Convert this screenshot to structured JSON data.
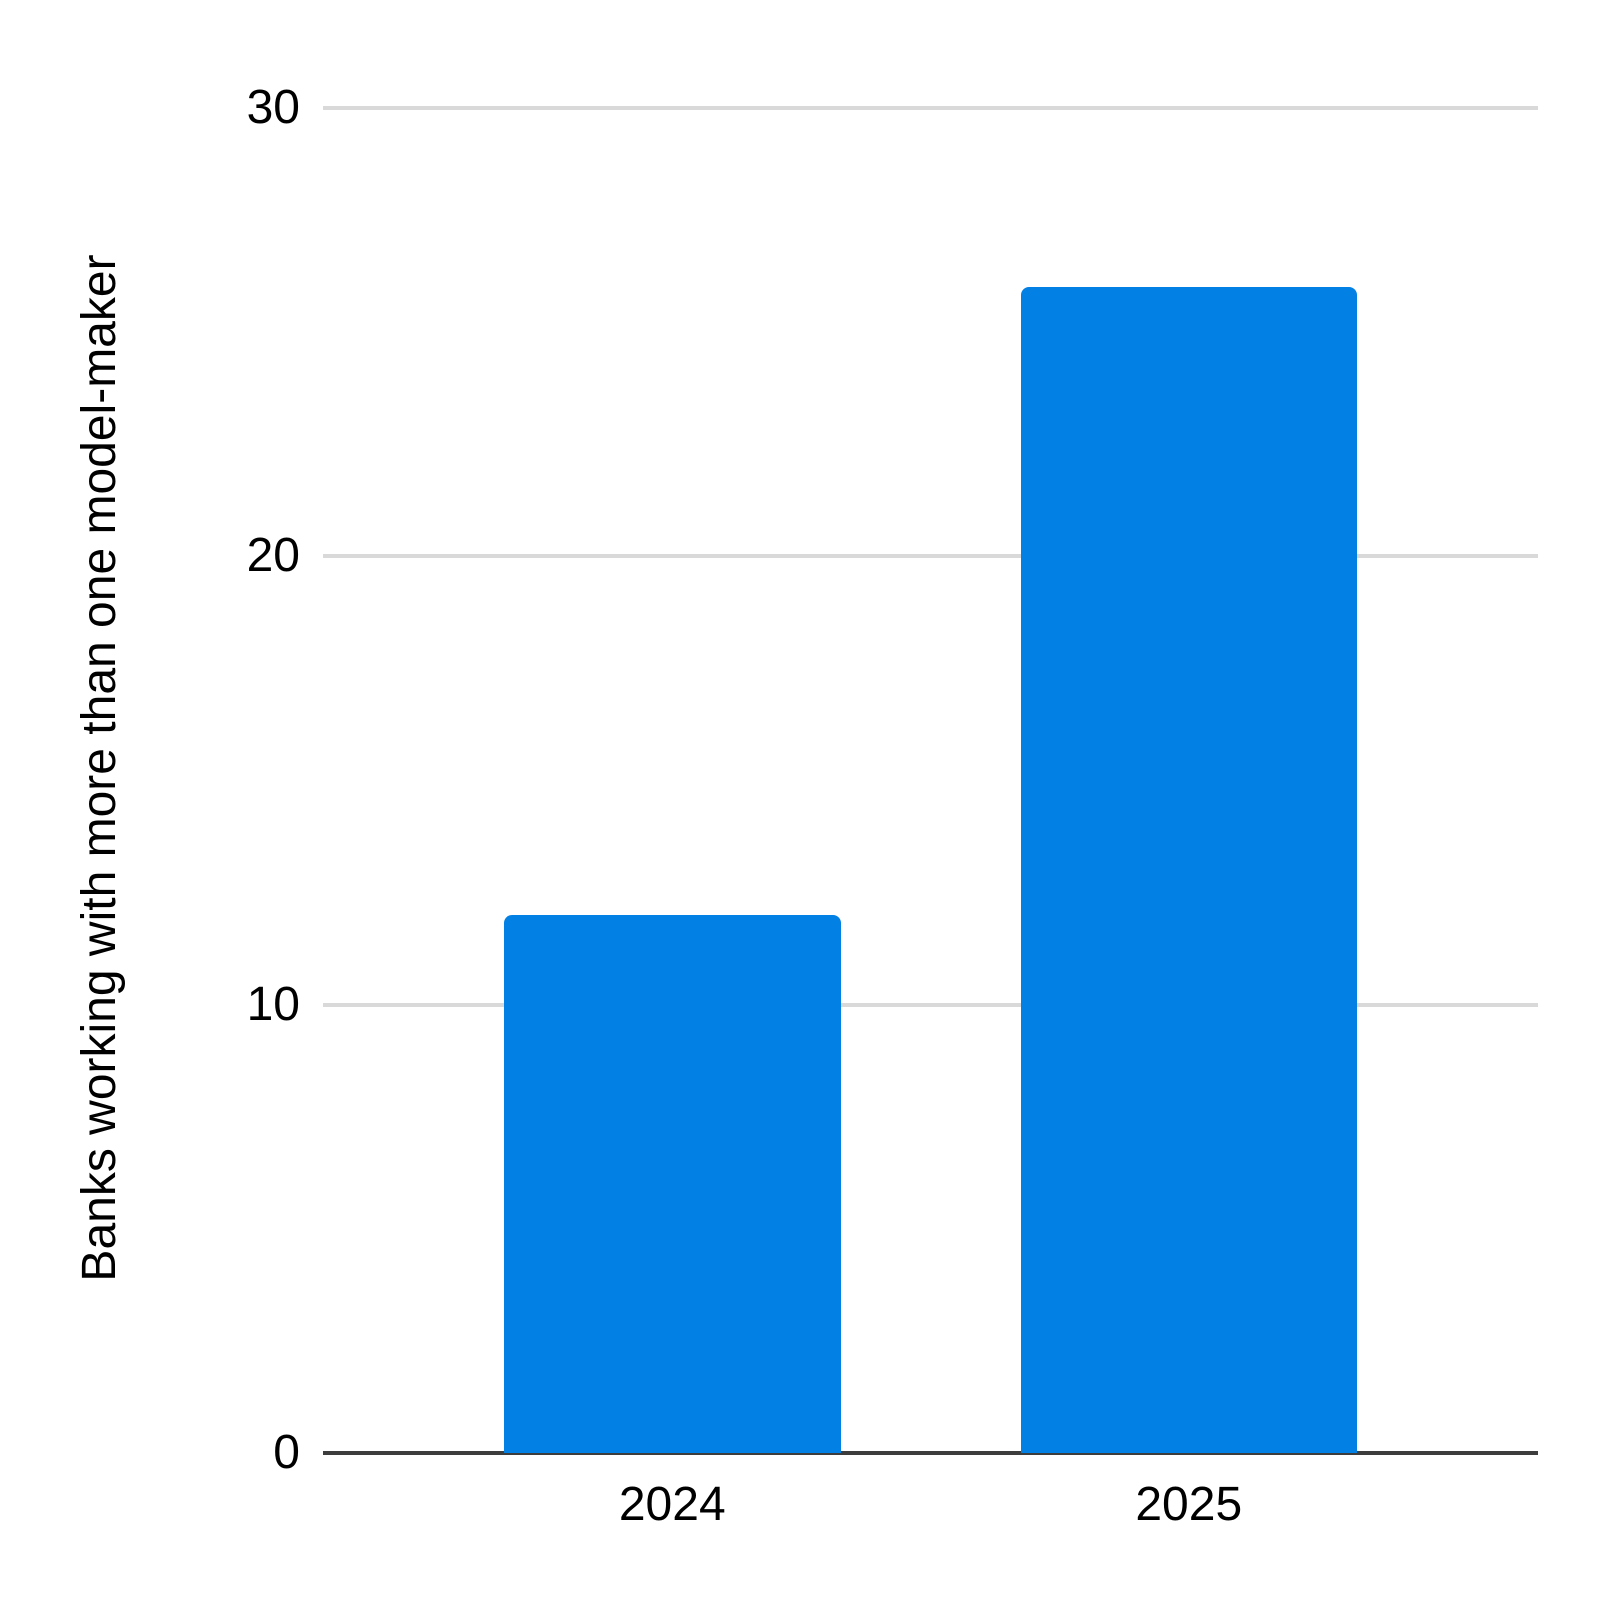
{
  "chart_data": {
    "type": "bar",
    "title": "",
    "categories": [
      "2024",
      "2025"
    ],
    "values": [
      12,
      26
    ],
    "xlabel": "",
    "ylabel": "Banks working with more than one model-maker",
    "ylim": [
      0,
      30
    ],
    "yticks": [
      0,
      10,
      20,
      30
    ],
    "grid": true,
    "legend_position": "none",
    "bar_color": "#0380e4",
    "gridline_color": "#d9d9d9",
    "axis_line_color": "#3d3d3d",
    "text_color": "#000000",
    "background_color": "#ffffff"
  }
}
